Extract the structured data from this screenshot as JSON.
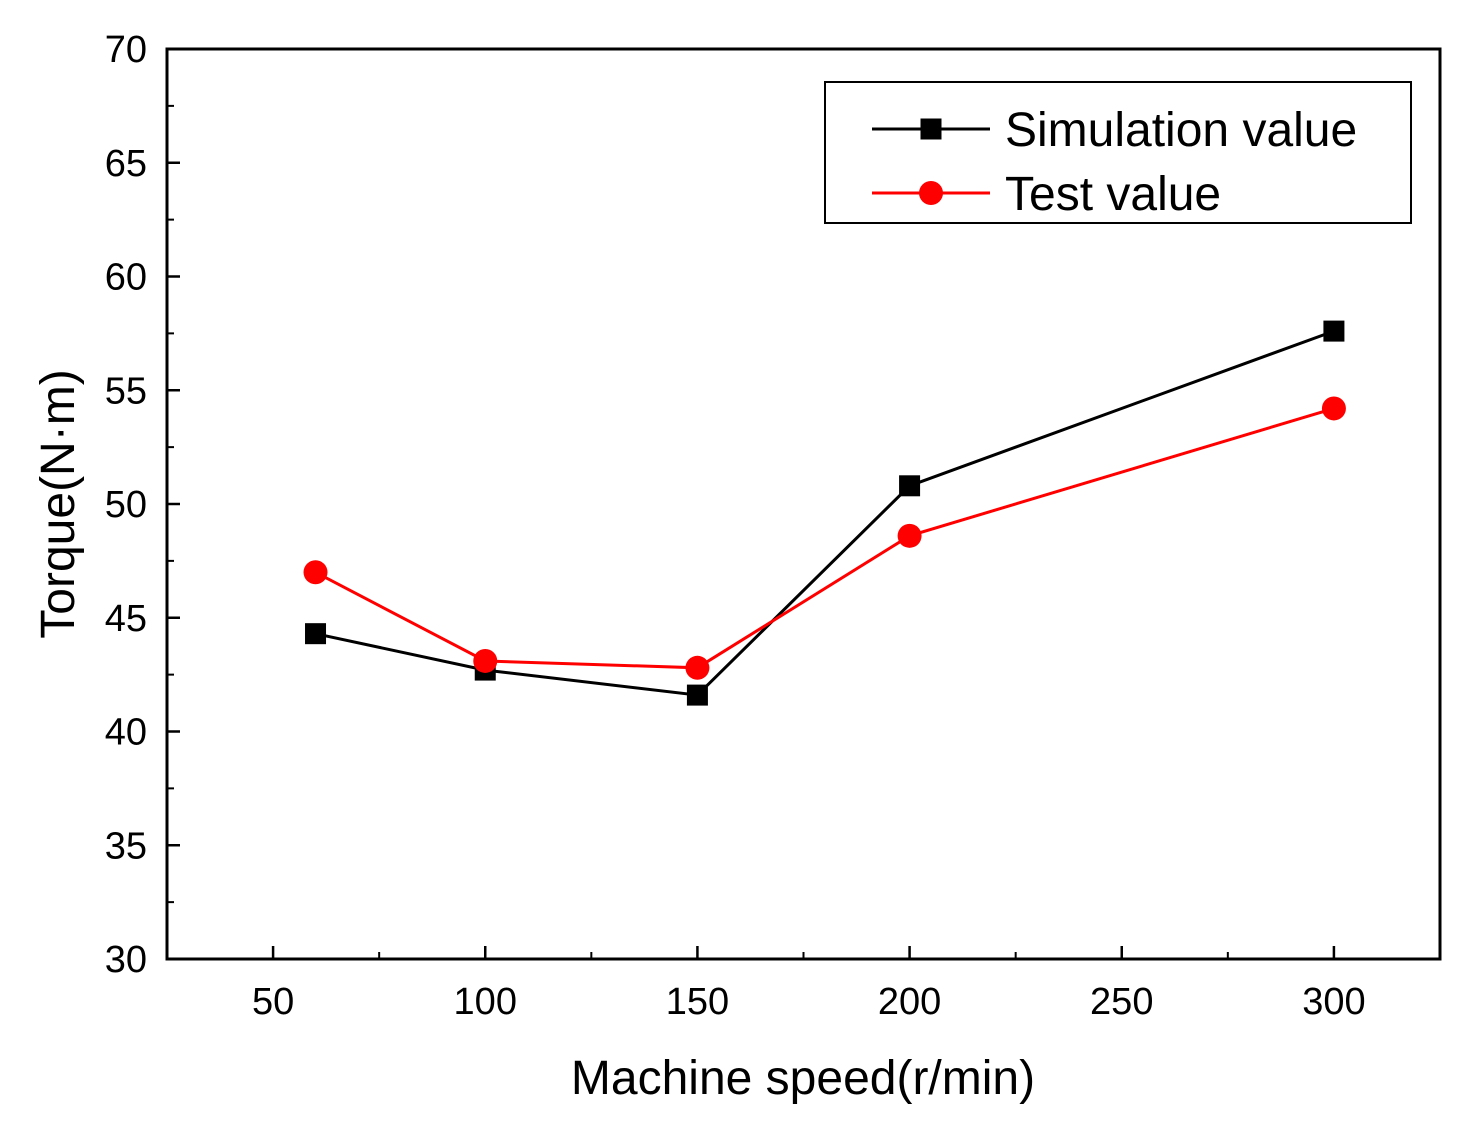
{
  "chart_data": {
    "type": "line",
    "title": "",
    "xlabel": "Machine speed(r/min)",
    "ylabel": "Torque(N·m)",
    "xlim": [
      25,
      325
    ],
    "ylim": [
      30,
      70
    ],
    "xticks": [
      50,
      100,
      150,
      200,
      250,
      300
    ],
    "yticks": [
      30,
      35,
      40,
      45,
      50,
      55,
      60,
      65,
      70
    ],
    "x_minor_step": 25,
    "y_minor_step": 2.5,
    "grid": false,
    "legend_position": "top-right",
    "series": [
      {
        "name": "Simulation value",
        "color": "#000000",
        "marker": "square",
        "x": [
          60,
          100,
          150,
          200,
          300
        ],
        "values": [
          44.3,
          42.7,
          41.6,
          50.8,
          57.6
        ]
      },
      {
        "name": "Test value",
        "color": "#ff0000",
        "marker": "circle",
        "x": [
          60,
          100,
          150,
          200,
          300
        ],
        "values": [
          47.0,
          43.1,
          42.8,
          48.6,
          54.2
        ]
      }
    ]
  }
}
